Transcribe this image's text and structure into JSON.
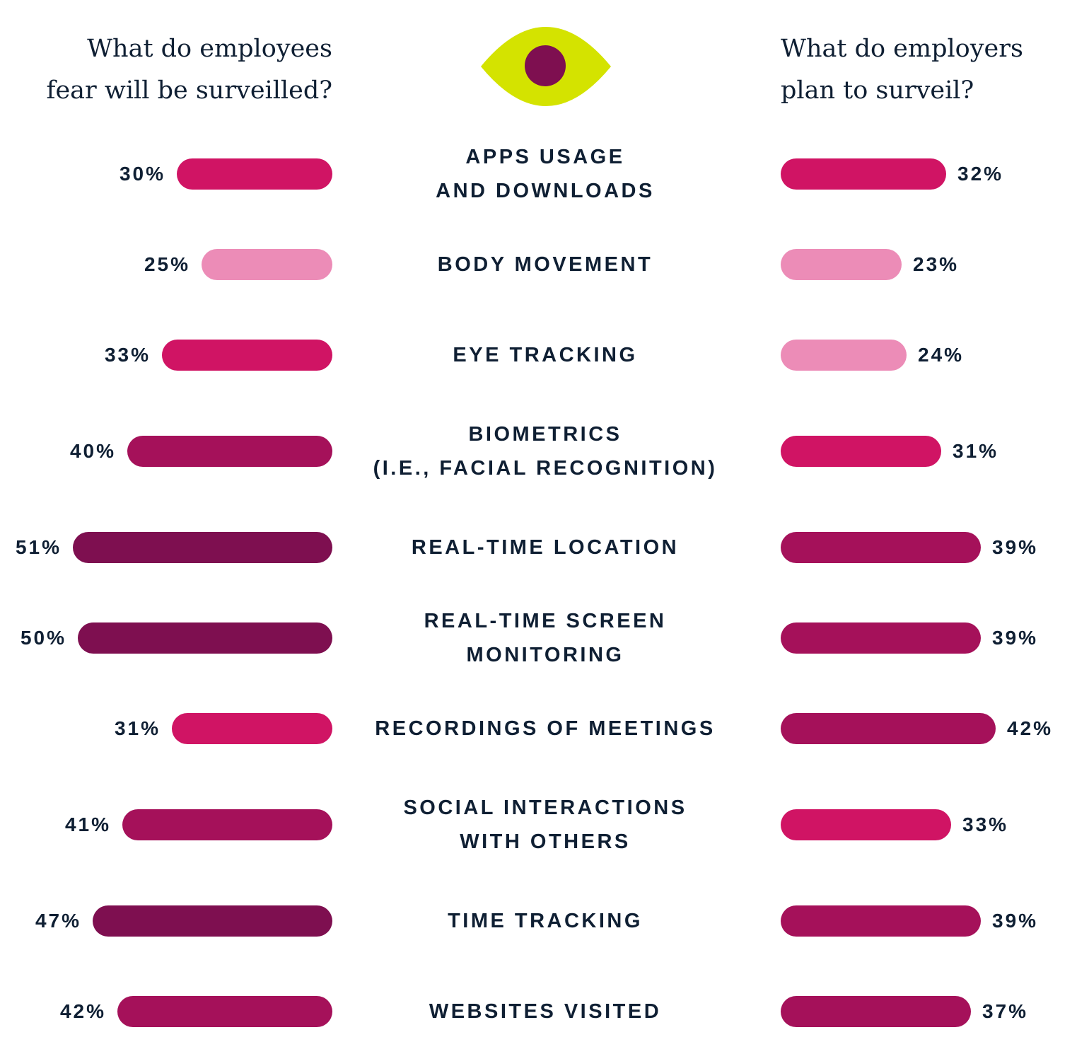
{
  "headings": {
    "left": "What do employees\nfear will be surveilled?",
    "right": "What do employers\nplan to surveil?"
  },
  "icon": {
    "name": "eye-icon",
    "outer_color": "#d4e300",
    "pupil_color": "#7e0f50"
  },
  "colors": {
    "text": "#0f1f33"
  },
  "chart_data": {
    "type": "bar",
    "orientation": "horizontal-butterfly",
    "categories": [
      "APPS USAGE\nAND DOWNLOADS",
      "BODY MOVEMENT",
      "EYE TRACKING",
      "BIOMETRICS\n(I.E., FACIAL RECOGNITION)",
      "REAL-TIME LOCATION",
      "REAL-TIME SCREEN\nMONITORING",
      "RECORDINGS OF MEETINGS",
      "SOCIAL INTERACTIONS\nWITH OTHERS",
      "TIME TRACKING",
      "WEBSITES VISITED"
    ],
    "series": [
      {
        "name": "What do employees fear will be surveilled?",
        "side": "left",
        "values": [
          30,
          25,
          33,
          40,
          51,
          50,
          31,
          41,
          47,
          42
        ],
        "labels": [
          "30%",
          "25%",
          "33%",
          "40%",
          "51%",
          "50%",
          "31%",
          "41%",
          "47%",
          "42%"
        ],
        "colors": [
          "#d01464",
          "#ec8cb7",
          "#d01464",
          "#a5115a",
          "#7e0f50",
          "#7e0f50",
          "#d01464",
          "#a5115a",
          "#7e0f50",
          "#a5115a"
        ]
      },
      {
        "name": "What do employers plan to surveil?",
        "side": "right",
        "values": [
          32,
          23,
          24,
          31,
          39,
          39,
          42,
          33,
          39,
          37
        ],
        "labels": [
          "32%",
          "23%",
          "24%",
          "31%",
          "39%",
          "39%",
          "42%",
          "33%",
          "39%",
          "37%"
        ],
        "colors": [
          "#d01464",
          "#ec8cb7",
          "#ec8cb7",
          "#d01464",
          "#a5115a",
          "#a5115a",
          "#a5115a",
          "#d01464",
          "#a5115a",
          "#a5115a"
        ]
      }
    ],
    "grid": false,
    "legend": "none"
  }
}
